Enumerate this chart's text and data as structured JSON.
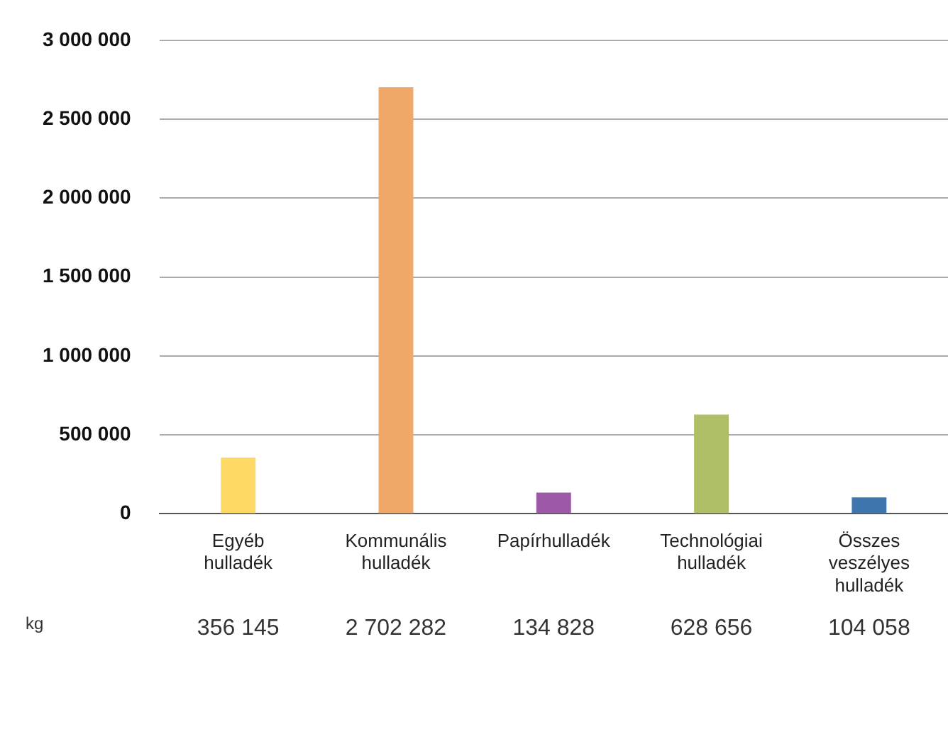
{
  "chart_data": {
    "type": "bar",
    "categories": [
      "Egyéb hulladék",
      "Kommunális hulladék",
      "Papírhulladék",
      "Technológiai hulladék",
      "Összes veszélyes hulladék"
    ],
    "values": [
      356145,
      2702282,
      134828,
      628656,
      104058
    ],
    "colors": [
      "#ffd966",
      "#f0a868",
      "#9b59a6",
      "#afbf68",
      "#3f76ad"
    ],
    "value_labels": [
      "356 145",
      "2 702 282",
      "134 828",
      "628 656",
      "104 058"
    ],
    "annotations": [
      "kg"
    ],
    "ylim": [
      0,
      3000000
    ],
    "yticks": [
      {
        "value": 0,
        "label": "0"
      },
      {
        "value": 500000,
        "label": "500 000"
      },
      {
        "value": 1000000,
        "label": "1 000 000"
      },
      {
        "value": 1500000,
        "label": "1 500 000"
      },
      {
        "value": 2000000,
        "label": "2 000 000"
      },
      {
        "value": 2500000,
        "label": "2 500 000"
      },
      {
        "value": 3000000,
        "label": "3 000 000"
      }
    ],
    "grid": "y"
  }
}
